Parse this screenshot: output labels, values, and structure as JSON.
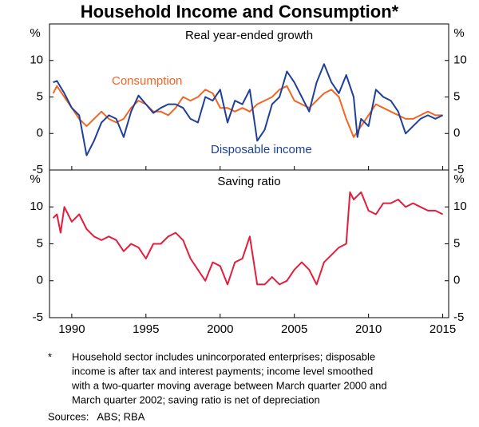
{
  "title": "Household Income and Consumption*",
  "footnote_marker": "*",
  "footnote": [
    "Household sector includes unincorporated enterprises; disposable",
    "income is after tax and interest payments; income level smoothed",
    "with a two-quarter moving average between March quarter 2000 and",
    "March quarter 2002; saving ratio is net of depreciation"
  ],
  "sources": "Sources:   ABS; RBA",
  "chart_data": [
    {
      "type": "line",
      "subtitle": "Real year-ended growth",
      "y_label": "%",
      "xlim": [
        1988.5,
        2015.4
      ],
      "ylim": [
        -5,
        15
      ],
      "yticks": [
        -5,
        0,
        5,
        10
      ],
      "series": [
        {
          "name": "Consumption",
          "color": "#f26522",
          "x": [
            1988.75,
            1989,
            1989.5,
            1990,
            1990.5,
            1991,
            1991.5,
            1992,
            1992.5,
            1993,
            1993.5,
            1994,
            1994.5,
            1995,
            1995.5,
            1996,
            1996.5,
            1997,
            1997.5,
            1998,
            1998.5,
            1999,
            1999.5,
            2000,
            2000.5,
            2001,
            2001.5,
            2002,
            2002.5,
            2003,
            2003.5,
            2004,
            2004.5,
            2005,
            2005.5,
            2006,
            2006.5,
            2007,
            2007.5,
            2008,
            2008.5,
            2009,
            2009.5,
            2010,
            2010.5,
            2011,
            2011.5,
            2012,
            2012.5,
            2013,
            2013.5,
            2014,
            2014.5,
            2015
          ],
          "values": [
            5.5,
            6.5,
            5,
            3.5,
            2,
            1,
            2,
            3,
            2,
            1.5,
            2,
            3.5,
            4.5,
            4,
            3,
            3,
            2.5,
            3.5,
            5,
            4.5,
            5,
            6,
            5.5,
            3.5,
            3.5,
            3,
            3.5,
            3,
            4,
            4.5,
            5,
            6,
            6.5,
            4.5,
            4,
            3.5,
            4.5,
            5.5,
            6,
            5,
            2,
            -0.5,
            1,
            2.5,
            4,
            3.5,
            3,
            2.5,
            2,
            2,
            2.5,
            3,
            2.5,
            2.5
          ]
        },
        {
          "name": "Disposable income",
          "color": "#1f3f99",
          "x": [
            1988.75,
            1989,
            1989.5,
            1990,
            1990.5,
            1991,
            1991.5,
            1992,
            1992.5,
            1993,
            1993.5,
            1994,
            1994.5,
            1995,
            1995.5,
            1996,
            1996.5,
            1997,
            1997.5,
            1998,
            1998.5,
            1999,
            1999.5,
            2000,
            2000.5,
            2001,
            2001.5,
            2002,
            2002.5,
            2003,
            2003.5,
            2004,
            2004.5,
            2005,
            2005.5,
            2006,
            2006.5,
            2007,
            2007.5,
            2008,
            2008.5,
            2009,
            2009.25,
            2009.5,
            2010,
            2010.5,
            2011,
            2011.5,
            2012,
            2012.5,
            2013,
            2013.5,
            2014,
            2014.5,
            2015
          ],
          "values": [
            7,
            7.2,
            5.5,
            3.5,
            2.5,
            -3,
            -1,
            1.5,
            2.5,
            2,
            -0.5,
            3,
            5.2,
            4,
            2.8,
            3.5,
            4,
            4,
            3.5,
            2,
            1.5,
            5,
            4.5,
            6,
            1.5,
            4.5,
            4,
            6,
            -1,
            0.5,
            4,
            5,
            8.5,
            7,
            5,
            3,
            7,
            9.5,
            7,
            5.5,
            8,
            5,
            -0.5,
            2,
            1,
            6,
            5,
            4.5,
            3,
            0,
            1,
            2,
            2.5,
            2,
            2.5
          ]
        }
      ]
    },
    {
      "type": "line",
      "subtitle": "Saving ratio",
      "y_label": "%",
      "xlim": [
        1988.5,
        2015.4
      ],
      "ylim": [
        -5,
        15
      ],
      "yticks": [
        -5,
        0,
        5,
        10
      ],
      "xticks": [
        1990,
        1995,
        2000,
        2005,
        2010,
        2015
      ],
      "series": [
        {
          "name": null,
          "color": "#e31e3c",
          "x": [
            1988.75,
            1989,
            1989.25,
            1989.5,
            1990,
            1990.5,
            1991,
            1991.5,
            1992,
            1992.5,
            1993,
            1993.5,
            1994,
            1994.5,
            1995,
            1995.5,
            1996,
            1996.5,
            1997,
            1997.5,
            1998,
            1998.5,
            1999,
            1999.5,
            2000,
            2000.5,
            2001,
            2001.5,
            2002,
            2002.5,
            2003,
            2003.5,
            2004,
            2004.5,
            2005,
            2005.5,
            2006,
            2006.5,
            2007,
            2007.5,
            2008,
            2008.5,
            2008.75,
            2009,
            2009.5,
            2010,
            2010.5,
            2011,
            2011.5,
            2012,
            2012.5,
            2013,
            2013.5,
            2014,
            2014.5,
            2015
          ],
          "values": [
            8.5,
            9,
            6.5,
            10,
            8,
            9,
            7,
            6,
            5.5,
            6,
            5.5,
            4,
            5,
            4.5,
            3,
            5,
            5,
            6,
            6.5,
            5.5,
            3,
            1.5,
            0,
            2.5,
            2,
            -0.5,
            2.5,
            3,
            6,
            -0.5,
            -0.5,
            0.5,
            -0.5,
            0,
            1.5,
            2.5,
            1.5,
            -0.5,
            2.5,
            3.5,
            4.5,
            5,
            12,
            11,
            12,
            9.5,
            9,
            10.5,
            10.5,
            11,
            10,
            10.5,
            10,
            9.5,
            9.5,
            9
          ]
        }
      ]
    }
  ]
}
